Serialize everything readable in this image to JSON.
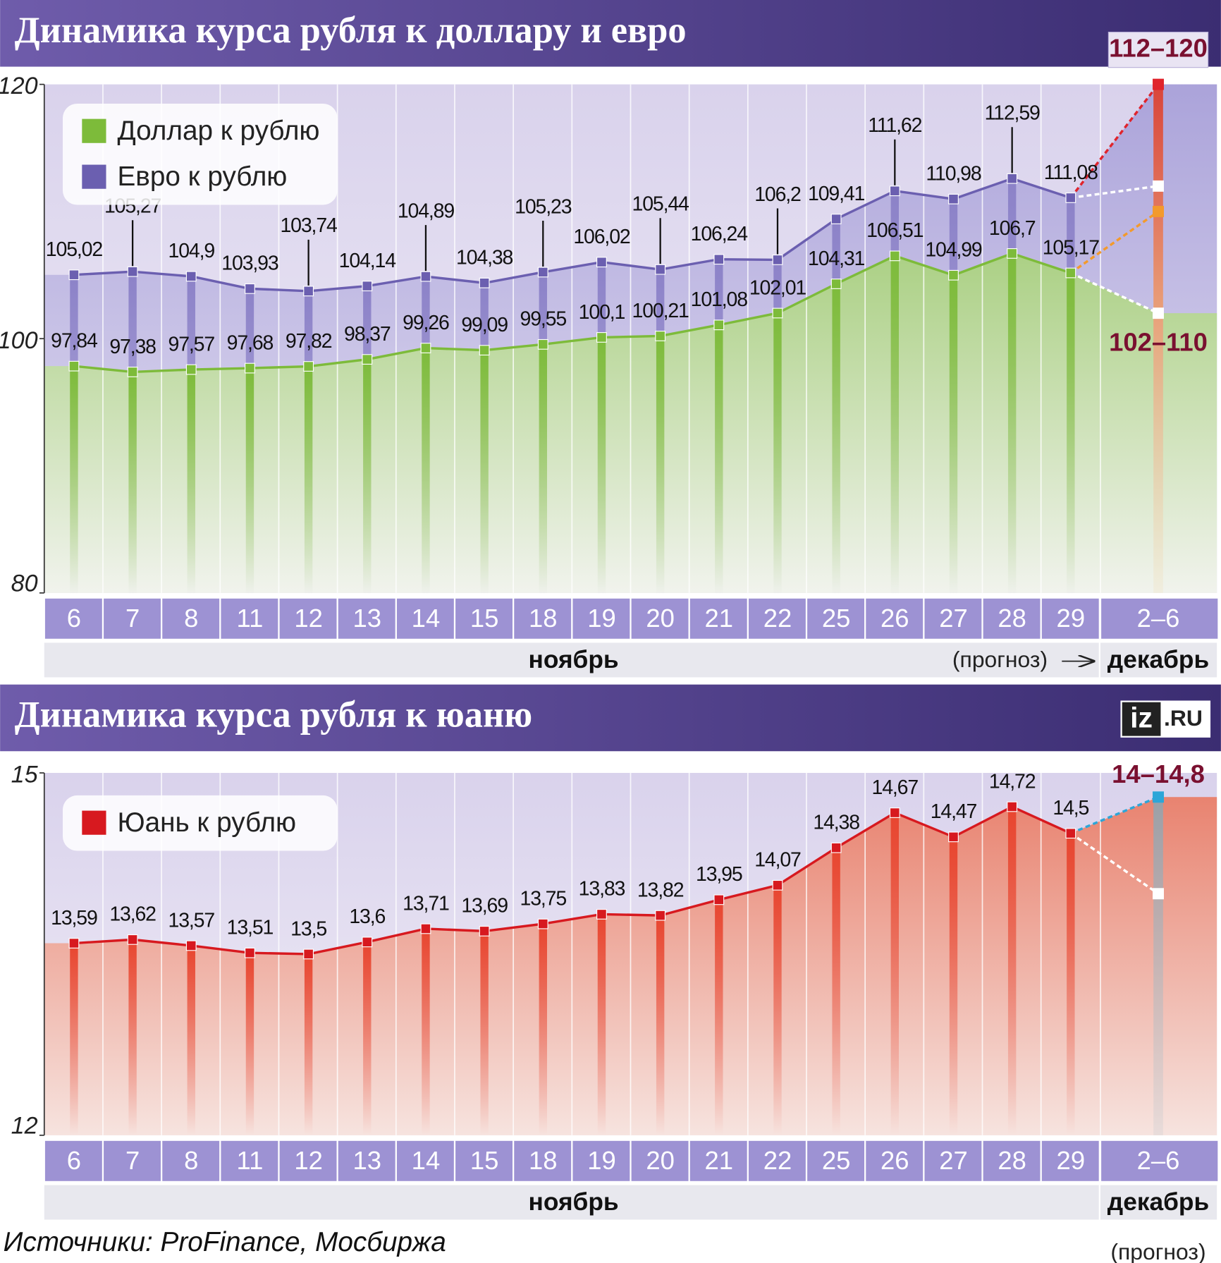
{
  "chart_data": [
    {
      "type": "line",
      "title": "Динамика курса рубля к доллару и евро",
      "categories": [
        "6",
        "7",
        "8",
        "11",
        "12",
        "13",
        "14",
        "15",
        "18",
        "19",
        "20",
        "21",
        "22",
        "25",
        "26",
        "27",
        "28",
        "29",
        "2–6"
      ],
      "series": [
        {
          "name": "Доллар к рублю",
          "color": "#7dbb3a",
          "values": [
            97.84,
            97.38,
            97.57,
            97.68,
            97.82,
            98.37,
            99.26,
            99.09,
            99.55,
            100.1,
            100.21,
            101.08,
            102.01,
            104.31,
            106.51,
            104.99,
            106.7,
            105.17,
            null
          ],
          "value_labels": [
            "97,84",
            "97,38",
            "97,57",
            "97,68",
            "97,82",
            "98,37",
            "99,26",
            "99,09",
            "99,55",
            "100,1",
            "100,21",
            "101,08",
            "102,01",
            "104,31",
            "106,51",
            "104,99",
            "106,7",
            "105,17",
            null
          ],
          "forecast": {
            "label": "102–110",
            "low": 102,
            "high": 110
          },
          "forecast_color": "#f39a2c"
        },
        {
          "name": "Евро к рублю",
          "color": "#6b5fb0",
          "values": [
            105.02,
            105.27,
            104.9,
            103.93,
            103.74,
            104.14,
            104.89,
            104.38,
            105.23,
            106.02,
            105.44,
            106.24,
            106.2,
            109.41,
            111.62,
            110.98,
            112.59,
            111.08,
            null
          ],
          "value_labels": [
            "105,02",
            "105,27",
            "104,9",
            "103,93",
            "103,74",
            "104,14",
            "104,89",
            "104,38",
            "105,23",
            "106,02",
            "105,44",
            "106,24",
            "106,2",
            "109,41",
            "111,62",
            "110,98",
            "112,59",
            "111,08",
            null
          ],
          "forecast": {
            "label": "112–120",
            "low": 112,
            "high": 120
          },
          "forecast_color": "#e0242c"
        }
      ],
      "ylim": [
        80,
        120
      ],
      "yticks": [
        80,
        100,
        120
      ],
      "months": [
        "ноябрь",
        "декабрь"
      ],
      "note": "(прогноз)"
    },
    {
      "type": "line",
      "title": "Динамика курса рубля к юаню",
      "categories": [
        "6",
        "7",
        "8",
        "11",
        "12",
        "13",
        "14",
        "15",
        "18",
        "19",
        "20",
        "21",
        "22",
        "25",
        "26",
        "27",
        "28",
        "29",
        "2–6"
      ],
      "series": [
        {
          "name": "Юань к рублю",
          "color": "#d7191f",
          "values": [
            13.59,
            13.62,
            13.57,
            13.51,
            13.5,
            13.6,
            13.71,
            13.69,
            13.75,
            13.83,
            13.82,
            13.95,
            14.07,
            14.38,
            14.67,
            14.47,
            14.72,
            14.5,
            null
          ],
          "value_labels": [
            "13,59",
            "13,62",
            "13,57",
            "13,51",
            "13,5",
            "13,6",
            "13,71",
            "13,69",
            "13,75",
            "13,83",
            "13,82",
            "13,95",
            "14,07",
            "14,38",
            "14,67",
            "14,47",
            "14,72",
            "14,5",
            null
          ],
          "forecast": {
            "label": "14–14,8",
            "low": 14,
            "high": 14.8
          },
          "forecast_color": "#2ca6d8"
        }
      ],
      "ylim": [
        12,
        15
      ],
      "yticks": [
        12,
        15
      ],
      "months": [
        "ноябрь",
        "декабрь"
      ],
      "note": "(прогноз)"
    }
  ],
  "source": "Источники: ProFinance, Мосбиржа",
  "logo": [
    "iz",
    ".RU"
  ]
}
